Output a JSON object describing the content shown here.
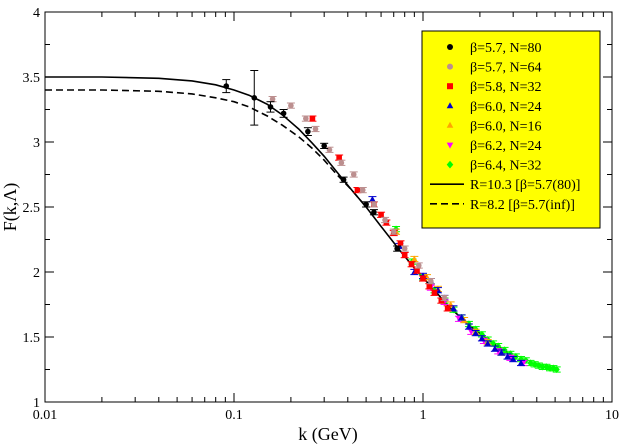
{
  "chart_data": {
    "type": "scatter",
    "xlabel": "k (GeV)",
    "ylabel": "F(k,Λ)",
    "x_scale": "log",
    "xlim": [
      0.01,
      10
    ],
    "ylim": [
      1,
      4
    ],
    "x_ticks": [
      0.01,
      0.1,
      1,
      10
    ],
    "x_tick_labels": [
      "0.01",
      "0.1",
      "1",
      "10"
    ],
    "y_ticks": [
      1,
      1.5,
      2,
      2.5,
      3,
      3.5,
      4
    ],
    "y_tick_labels": [
      "1",
      "1.5",
      "2",
      "2.5",
      "3",
      "3.5",
      "4"
    ],
    "legend_position": "top-right",
    "legend_background": "#ffff00",
    "series": [
      {
        "name": "β=5.7, N=80",
        "marker": "circle",
        "color": "#000000",
        "x": [
          0.091,
          0.128,
          0.156,
          0.183,
          0.246,
          0.3,
          0.38,
          0.5,
          0.55,
          0.73
        ],
        "y": [
          3.43,
          3.34,
          3.27,
          3.22,
          3.08,
          2.97,
          2.71,
          2.52,
          2.46,
          2.18
        ],
        "err": [
          0.05,
          0.21,
          0.04,
          0.03,
          0.03,
          0.02,
          0.02,
          0.02,
          0.02,
          0.02
        ]
      },
      {
        "name": "β=5.7, N=64",
        "marker": "circle",
        "color": "#bc8f8f",
        "x": [
          0.16,
          0.2,
          0.24,
          0.27,
          0.32,
          0.37,
          0.43,
          0.48,
          0.55,
          0.63,
          0.7,
          0.8,
          0.95,
          1.1,
          1.3
        ],
        "y": [
          3.33,
          3.28,
          3.18,
          3.1,
          2.94,
          2.84,
          2.75,
          2.63,
          2.52,
          2.4,
          2.31,
          2.18,
          2.05,
          1.93,
          1.8
        ],
        "err": [
          0.02,
          0.02,
          0.02,
          0.02,
          0.02,
          0.02,
          0.02,
          0.02,
          0.02,
          0.02,
          0.02,
          0.02,
          0.02,
          0.02,
          0.02
        ]
      },
      {
        "name": "β=5.8, N=32",
        "marker": "square",
        "color": "#ff0000",
        "x": [
          0.26,
          0.36,
          0.45,
          0.55,
          0.6,
          0.64,
          0.7,
          0.76,
          0.8,
          0.87,
          0.93,
          1.0,
          1.08,
          1.15,
          1.25,
          1.35
        ],
        "y": [
          3.18,
          2.88,
          2.63,
          2.52,
          2.44,
          2.38,
          2.3,
          2.22,
          2.13,
          2.06,
          2.01,
          1.95,
          1.89,
          1.84,
          1.78,
          1.72
        ],
        "err": [
          0.02,
          0.02,
          0.02,
          0.02,
          0.02,
          0.02,
          0.02,
          0.02,
          0.02,
          0.02,
          0.02,
          0.02,
          0.02,
          0.02,
          0.02,
          0.02
        ]
      },
      {
        "name": "β=6.0, N=24",
        "marker": "triangle",
        "color": "#0000cd",
        "x": [
          0.54,
          0.75,
          0.9,
          1.0,
          1.1,
          1.2,
          1.3,
          1.45,
          1.6,
          1.75,
          1.9,
          2.05,
          2.2,
          2.4,
          2.6,
          2.8,
          3.0,
          3.3
        ],
        "y": [
          2.56,
          2.2,
          2.0,
          1.97,
          1.93,
          1.86,
          1.8,
          1.72,
          1.65,
          1.58,
          1.53,
          1.49,
          1.45,
          1.41,
          1.38,
          1.35,
          1.33,
          1.3
        ],
        "err": [
          0.02,
          0.02,
          0.02,
          0.02,
          0.02,
          0.02,
          0.02,
          0.02,
          0.02,
          0.02,
          0.02,
          0.02,
          0.02,
          0.02,
          0.02,
          0.02,
          0.02,
          0.02
        ]
      },
      {
        "name": "β=6.0, N=16",
        "marker": "triangle",
        "color": "#ffa500",
        "x": [
          0.72,
          0.9,
          1.05,
          1.2,
          1.4,
          1.65,
          1.9,
          2.2,
          2.6
        ],
        "y": [
          2.31,
          2.1,
          1.96,
          1.87,
          1.75,
          1.63,
          1.54,
          1.46,
          1.38
        ],
        "err": [
          0.02,
          0.02,
          0.02,
          0.02,
          0.02,
          0.02,
          0.02,
          0.02,
          0.02
        ]
      },
      {
        "name": "β=6.2, N=24",
        "marker": "triangle-down",
        "color": "#ff00ff",
        "x": [
          1.1,
          1.3,
          1.55,
          1.8,
          2.1,
          2.5,
          2.9,
          3.4
        ],
        "y": [
          1.88,
          1.77,
          1.64,
          1.54,
          1.47,
          1.39,
          1.34,
          1.3
        ],
        "err": [
          0.02,
          0.02,
          0.02,
          0.02,
          0.02,
          0.02,
          0.02,
          0.02
        ]
      },
      {
        "name": "β=6.4, N=32",
        "marker": "diamond",
        "color": "#00ff00",
        "x": [
          0.72,
          0.88,
          1.0,
          1.15,
          1.3,
          1.45,
          1.6,
          1.75,
          1.9,
          2.05,
          2.2,
          2.35,
          2.5,
          2.7,
          2.9,
          3.1,
          3.3,
          3.5,
          3.7,
          3.9,
          4.1,
          4.3,
          4.5,
          4.7,
          4.9,
          5.1
        ],
        "y": [
          2.33,
          2.08,
          1.96,
          1.86,
          1.78,
          1.71,
          1.65,
          1.6,
          1.56,
          1.52,
          1.48,
          1.45,
          1.43,
          1.4,
          1.37,
          1.35,
          1.33,
          1.32,
          1.3,
          1.29,
          1.28,
          1.27,
          1.27,
          1.26,
          1.26,
          1.25
        ],
        "err": [
          0.02,
          0.02,
          0.02,
          0.02,
          0.02,
          0.02,
          0.02,
          0.02,
          0.02,
          0.02,
          0.02,
          0.02,
          0.02,
          0.02,
          0.02,
          0.02,
          0.02,
          0.02,
          0.02,
          0.02,
          0.02,
          0.02,
          0.02,
          0.02,
          0.02,
          0.02
        ]
      }
    ],
    "curves": [
      {
        "name": "R=10.3 [β=5.7(80)]",
        "style": "solid",
        "color": "#000000",
        "x": [
          0.01,
          0.02,
          0.04,
          0.06,
          0.08,
          0.1,
          0.12,
          0.15,
          0.18,
          0.22,
          0.26,
          0.3,
          0.35,
          0.42,
          0.5,
          0.6,
          0.75,
          0.9,
          1.1,
          1.4,
          1.8,
          2.3,
          3.0
        ],
        "y": [
          3.5,
          3.5,
          3.49,
          3.47,
          3.44,
          3.4,
          3.36,
          3.29,
          3.21,
          3.1,
          2.99,
          2.89,
          2.77,
          2.63,
          2.5,
          2.35,
          2.17,
          2.03,
          1.89,
          1.72,
          1.58,
          1.46,
          1.35
        ]
      },
      {
        "name": "R=8.2 [β=5.7(inf)]",
        "style": "dashed",
        "color": "#000000",
        "x": [
          0.01,
          0.02,
          0.04,
          0.06,
          0.08,
          0.1,
          0.12,
          0.15,
          0.18,
          0.22,
          0.26,
          0.3,
          0.35,
          0.42,
          0.5
        ],
        "y": [
          3.4,
          3.4,
          3.39,
          3.37,
          3.34,
          3.31,
          3.27,
          3.2,
          3.13,
          3.04,
          2.95,
          2.86,
          2.75,
          2.63,
          2.5
        ]
      }
    ]
  }
}
